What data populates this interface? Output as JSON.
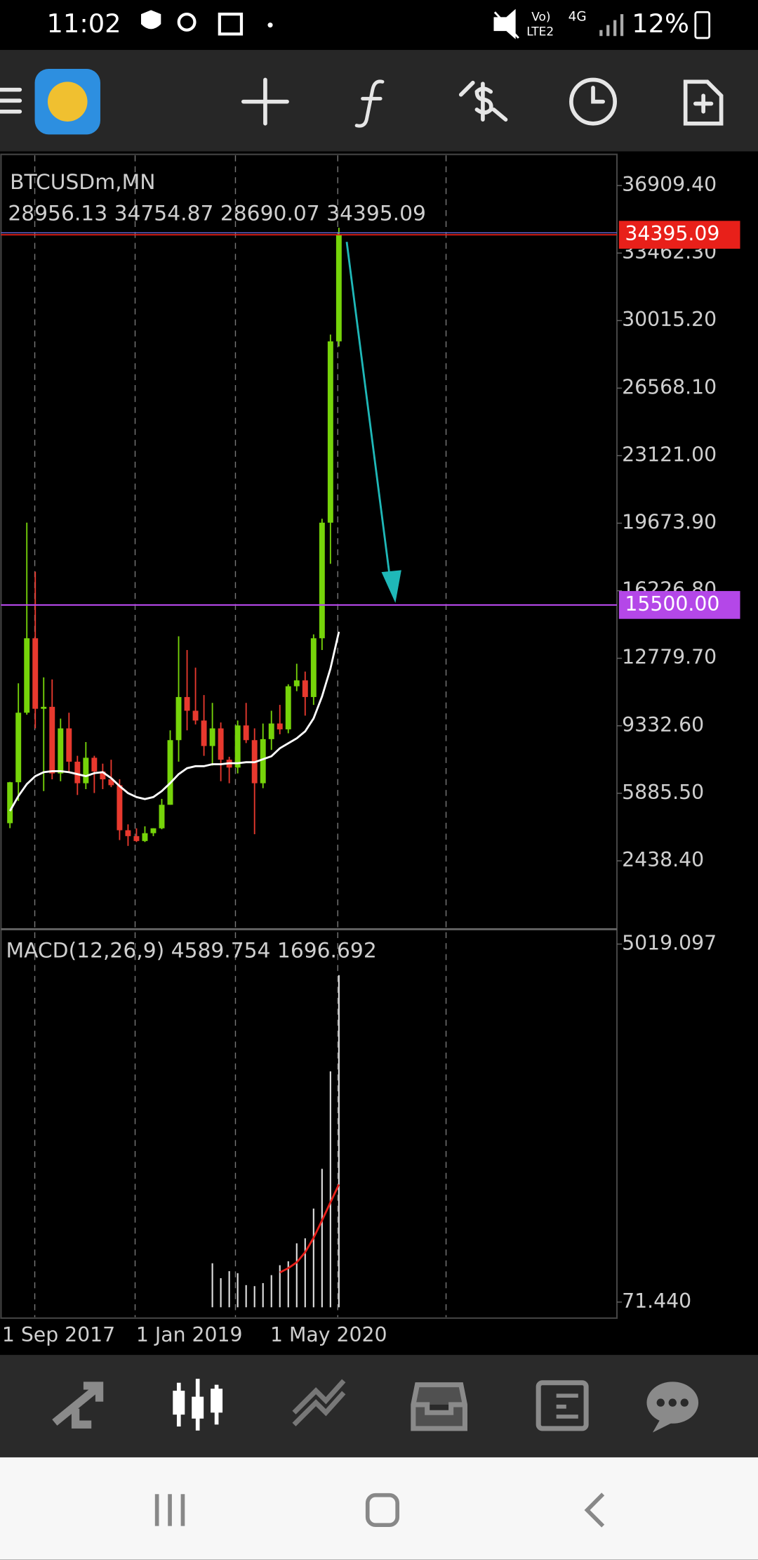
{
  "status_bar": {
    "time": "11:02",
    "volte": "Vo)",
    "lte": "LTE2",
    "network": "4G",
    "battery": "12%"
  },
  "chart_data": [
    {
      "type": "candlestick",
      "title": "BTCUSDm,MN",
      "open": [
        4360,
        6450,
        10000,
        13800,
        10200,
        10300,
        6900,
        9200,
        7500,
        6400,
        7700,
        7000,
        6600,
        6300,
        4000,
        3700,
        3450,
        3850,
        4100,
        5300,
        8600,
        10800,
        10100,
        9600,
        8300,
        9200,
        7600,
        7200,
        9350,
        8600,
        6400,
        8650,
        9450,
        9150,
        11350,
        11650,
        10800,
        13800,
        19700,
        28956.13
      ],
      "high": [
        6470,
        11500,
        19700,
        17200,
        11800,
        11700,
        9700,
        10000,
        7800,
        8500,
        7800,
        7400,
        7600,
        6600,
        4300,
        4100,
        4200,
        4100,
        5600,
        9100,
        13900,
        13200,
        12300,
        10900,
        10500,
        9500,
        7750,
        9600,
        10500,
        9200,
        9450,
        10100,
        10400,
        11450,
        12500,
        12100,
        14000,
        19900,
        29300,
        34754.87
      ],
      "low": [
        4110,
        5500,
        9900,
        9200,
        6000,
        6600,
        6500,
        7000,
        5800,
        6100,
        5900,
        6100,
        6200,
        3500,
        3200,
        3400,
        3400,
        3700,
        4050,
        5300,
        7500,
        9100,
        9400,
        7800,
        7300,
        6500,
        6400,
        6900,
        8450,
        3800,
        6150,
        8100,
        8900,
        8950,
        11100,
        9850,
        10400,
        13200,
        17600,
        28690.07
      ],
      "close": [
        6450,
        10000,
        13800,
        10200,
        10300,
        6900,
        9200,
        7500,
        6400,
        7700,
        7000,
        6600,
        6300,
        4000,
        3700,
        3450,
        3850,
        4100,
        5300,
        8600,
        10800,
        10100,
        9600,
        8300,
        9200,
        7600,
        7200,
        9350,
        8600,
        6400,
        8650,
        9450,
        9150,
        11350,
        11650,
        10800,
        13800,
        19700,
        28956,
        34395.09
      ],
      "ma": [
        4982,
        5745,
        6355,
        6760,
        6965,
        7015,
        7015,
        6965,
        6863,
        6760,
        6914,
        6965,
        6660,
        6253,
        5897,
        5694,
        5592,
        5694,
        5999,
        6406,
        6863,
        7168,
        7270,
        7270,
        7371,
        7371,
        7422,
        7422,
        7473,
        7473,
        7626,
        7778,
        8185,
        8439,
        8693,
        9049,
        9710,
        10828,
        12252,
        14133
      ],
      "up_color": "#76d40a",
      "down_color": "#e8392e",
      "ma_color": "#ffffff",
      "bid_color": "#e8201a",
      "levels": [
        {
          "value": 15500,
          "label": "15500.00",
          "color": "#b447e8"
        }
      ],
      "ylim": [
        -1000,
        38500
      ],
      "yticks": [
        {
          "value": 36909.4,
          "label": "36909.40"
        },
        {
          "value": 33462.3,
          "label": "33462.30"
        },
        {
          "value": 30015.2,
          "label": "30015.20"
        },
        {
          "value": 26568.1,
          "label": "26568.10"
        },
        {
          "value": 23121,
          "label": "23121.00"
        },
        {
          "value": 19673.9,
          "label": "19673.90"
        },
        {
          "value": 16226.8,
          "label": "16226.80"
        },
        {
          "value": 12779.7,
          "label": "12779.70"
        },
        {
          "value": 9332.6,
          "label": "9332.60"
        },
        {
          "value": 5885.5,
          "label": "5885.50"
        },
        {
          "value": 2438.4,
          "label": "2438.40"
        }
      ],
      "x_labels": [
        "1 Sep 2017",
        "1 Jan 2019",
        "1 May 2020"
      ]
    },
    {
      "type": "macd",
      "title": "MACD(12,26,9)",
      "histogram": [
        null,
        null,
        null,
        null,
        null,
        null,
        null,
        null,
        null,
        null,
        null,
        null,
        null,
        null,
        null,
        null,
        null,
        null,
        null,
        null,
        null,
        null,
        null,
        null,
        608,
        402,
        499,
        471,
        306,
        292,
        334,
        444,
        581,
        636,
        883,
        952,
        1364,
        1913,
        3260,
        4589.754
      ],
      "signal": [
        null,
        null,
        null,
        null,
        null,
        null,
        null,
        null,
        null,
        null,
        null,
        null,
        null,
        null,
        null,
        null,
        null,
        null,
        null,
        null,
        null,
        null,
        null,
        null,
        null,
        null,
        null,
        null,
        null,
        null,
        null,
        null,
        480,
        540,
        620,
        760,
        960,
        1200,
        1450,
        1696.692
      ],
      "histogram_color": "#e0e0e0",
      "signal_color": "#e8201a",
      "ylim": [
        -150,
        5211
      ],
      "yticks": [
        5019.097,
        {
          "value": 71.44,
          "label": "71.440"
        }
      ]
    }
  ]
}
